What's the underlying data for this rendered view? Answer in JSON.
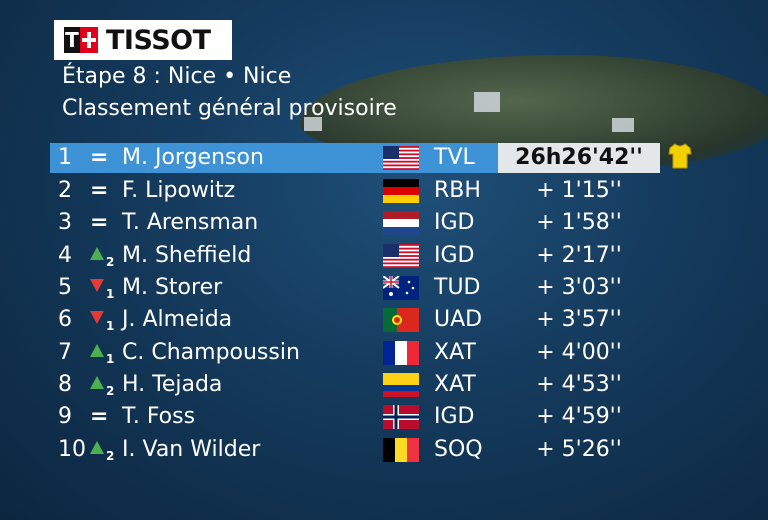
{
  "brand": {
    "name": "TISSOT",
    "mark": "T"
  },
  "header": {
    "stage": "Étape 8 : Nice •  Nice",
    "subtitle": "Classement général provisoire"
  },
  "rows": [
    {
      "pos": "1",
      "change": "eq",
      "change_text": "=",
      "change_amount": "",
      "name": "M. Jorgenson",
      "flag": "usa",
      "team": "TVL",
      "time": "26h26'42''"
    },
    {
      "pos": "2",
      "change": "eq",
      "change_text": "=",
      "change_amount": "",
      "name": "F. Lipowitz",
      "flag": "ger",
      "team": "RBH",
      "time": "+ 1'15''"
    },
    {
      "pos": "3",
      "change": "eq",
      "change_text": "=",
      "change_amount": "",
      "name": "T. Arensman",
      "flag": "ned",
      "team": "IGD",
      "time": "+ 1'58''"
    },
    {
      "pos": "4",
      "change": "up",
      "change_text": "",
      "change_amount": "2",
      "name": "M. Sheffield",
      "flag": "usa",
      "team": "IGD",
      "time": "+ 2'17''"
    },
    {
      "pos": "5",
      "change": "down",
      "change_text": "",
      "change_amount": "1",
      "name": "M. Storer",
      "flag": "aus",
      "team": "TUD",
      "time": "+ 3'03''"
    },
    {
      "pos": "6",
      "change": "down",
      "change_text": "",
      "change_amount": "1",
      "name": "J. Almeida",
      "flag": "por",
      "team": "UAD",
      "time": "+ 3'57''"
    },
    {
      "pos": "7",
      "change": "up",
      "change_text": "",
      "change_amount": "1",
      "name": "C. Champoussin",
      "flag": "fra",
      "team": "XAT",
      "time": "+ 4'00''"
    },
    {
      "pos": "8",
      "change": "up",
      "change_text": "",
      "change_amount": "2",
      "name": "H. Tejada",
      "flag": "col",
      "team": "XAT",
      "time": "+ 4'53''"
    },
    {
      "pos": "9",
      "change": "eq",
      "change_text": "=",
      "change_amount": "",
      "name": "T. Foss",
      "flag": "nor",
      "team": "IGD",
      "time": "+ 4'59''"
    },
    {
      "pos": "10",
      "change": "up",
      "change_text": "",
      "change_amount": "2",
      "name": "I. Van Wilder",
      "flag": "bel",
      "team": "SOQ",
      "time": "+ 5'26''"
    }
  ],
  "leader_jersey_icon": "yellow-jersey-icon",
  "colors": {
    "leader_bar": "#3e93d6",
    "up": "#4caf50",
    "down": "#e53935",
    "jersey": "#f5d000"
  }
}
